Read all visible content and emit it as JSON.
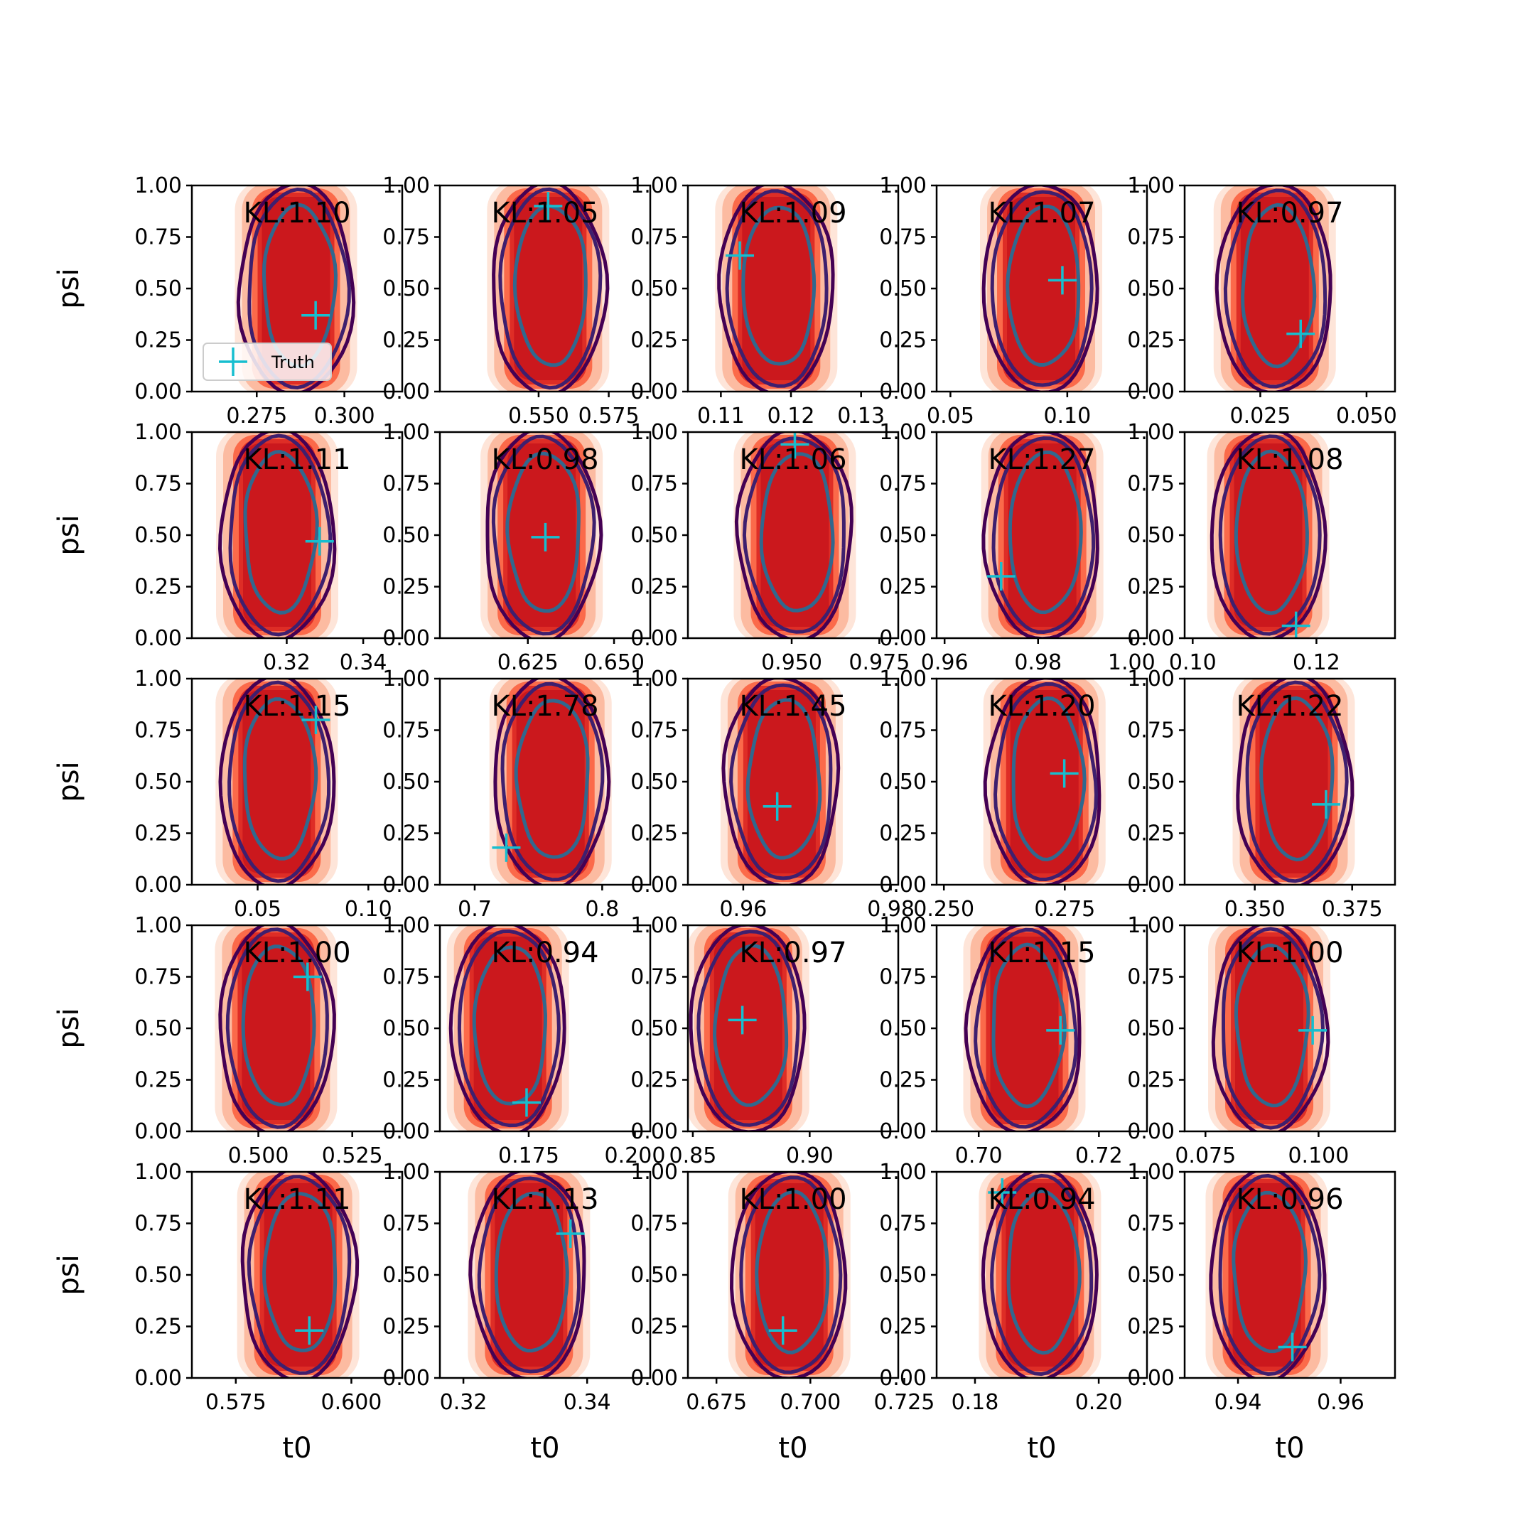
{
  "figure": {
    "legend_label": "Truth",
    "colors": {
      "fill_levels": [
        "#fee5d9",
        "#fcbba1",
        "#fb6a4a",
        "#de2d26",
        "#cb181d"
      ],
      "contour_outer": "#440154",
      "contour_middle": "#3e1f6e",
      "contour_inner": "#31688e",
      "truth_marker": "#17becf",
      "axis": "#000000"
    }
  },
  "chart_data": [
    {
      "type": "contour",
      "row": 0,
      "col": 0,
      "kl": "KL:1.10",
      "xticks": [
        0.275,
        0.3
      ],
      "xtick_labels": [
        "0.275",
        "0.300"
      ],
      "xlim": [
        0.2565,
        0.3165
      ],
      "center_x": 0.2862,
      "truth": [
        0.2918,
        0.37
      ],
      "ylim": [
        0,
        1
      ],
      "yticks": [
        "0.00",
        "0.25",
        "0.50",
        "0.75",
        "1.00"
      ],
      "ylabel": "psi",
      "xlabel": "",
      "legend": true
    },
    {
      "type": "contour",
      "row": 0,
      "col": 1,
      "kl": "KL:1.05",
      "xticks": [
        0.55,
        0.575
      ],
      "xtick_labels": [
        "0.550",
        "0.575"
      ],
      "xlim": [
        0.5148,
        0.5898
      ],
      "center_x": 0.5534,
      "truth": [
        0.5534,
        0.9
      ],
      "ylim": [
        0,
        1
      ],
      "yticks": [
        "0.00",
        "0.25",
        "0.50",
        "0.75",
        "1.00"
      ],
      "ylabel": "",
      "xlabel": ""
    },
    {
      "type": "contour",
      "row": 0,
      "col": 2,
      "kl": "KL:1.09",
      "xticks": [
        0.11,
        0.12,
        0.13
      ],
      "xtick_labels": [
        "0.11",
        "0.12",
        "0.13"
      ],
      "xlim": [
        0.1053,
        0.1353
      ],
      "center_x": 0.1179,
      "truth": [
        0.1127,
        0.66
      ],
      "ylim": [
        0,
        1
      ],
      "yticks": [
        "0.00",
        "0.25",
        "0.50",
        "0.75",
        "1.00"
      ],
      "ylabel": "",
      "xlabel": ""
    },
    {
      "type": "contour",
      "row": 0,
      "col": 3,
      "kl": "KL:1.07",
      "xticks": [
        0.05,
        0.1
      ],
      "xtick_labels": [
        "0.05",
        "0.10"
      ],
      "xlim": [
        0.0441,
        0.1341
      ],
      "center_x": 0.0888,
      "truth": [
        0.0979,
        0.54
      ],
      "ylim": [
        0,
        1
      ],
      "yticks": [
        "0.00",
        "0.25",
        "0.50",
        "0.75",
        "1.00"
      ],
      "ylabel": "",
      "xlabel": ""
    },
    {
      "type": "contour",
      "row": 0,
      "col": 4,
      "kl": "KL:0.97",
      "xticks": [
        0.025,
        0.05
      ],
      "xtick_labels": [
        "0.025",
        "0.050"
      ],
      "xlim": [
        0.0072,
        0.0567
      ],
      "center_x": 0.0284,
      "truth": [
        0.0345,
        0.28
      ],
      "ylim": [
        0,
        1
      ],
      "yticks": [
        "0.00",
        "0.25",
        "0.50",
        "0.75",
        "1.00"
      ],
      "ylabel": "",
      "xlabel": ""
    },
    {
      "type": "contour",
      "row": 1,
      "col": 0,
      "kl": "KL:1.11",
      "xticks": [
        0.32,
        0.34
      ],
      "xtick_labels": [
        "0.32",
        "0.34"
      ],
      "xlim": [
        0.2952,
        0.3502
      ],
      "center_x": 0.3175,
      "truth": [
        0.3286,
        0.47
      ],
      "ylim": [
        0,
        1
      ],
      "yticks": [
        "0.00",
        "0.25",
        "0.50",
        "0.75",
        "1.00"
      ],
      "ylabel": "psi",
      "xlabel": ""
    },
    {
      "type": "contour",
      "row": 1,
      "col": 1,
      "kl": "KL:0.98",
      "xticks": [
        0.625,
        0.65
      ],
      "xtick_labels": [
        "0.625",
        "0.650"
      ],
      "xlim": [
        0.5995,
        0.6605
      ],
      "center_x": 0.629,
      "truth": [
        0.6301,
        0.49
      ],
      "ylim": [
        0,
        1
      ],
      "yticks": [
        "0.00",
        "0.25",
        "0.50",
        "0.75",
        "1.00"
      ],
      "ylabel": "",
      "xlabel": ""
    },
    {
      "type": "contour",
      "row": 1,
      "col": 2,
      "kl": "KL:1.06",
      "xticks": [
        0.95,
        0.975
      ],
      "xtick_labels": [
        "0.950",
        "0.975"
      ],
      "xlim": [
        0.9204,
        0.9804
      ],
      "center_x": 0.9509,
      "truth": [
        0.9509,
        0.94
      ],
      "ylim": [
        0,
        1
      ],
      "yticks": [
        "0.00",
        "0.25",
        "0.50",
        "0.75",
        "1.00"
      ],
      "ylabel": "",
      "xlabel": ""
    },
    {
      "type": "contour",
      "row": 1,
      "col": 3,
      "kl": "KL:1.27",
      "xticks": [
        0.96,
        0.98,
        1.0
      ],
      "xtick_labels": [
        "0.96",
        "0.98",
        "1.00"
      ],
      "xlim": [
        0.9583,
        1.0033
      ],
      "center_x": 0.9809,
      "truth": [
        0.9721,
        0.3
      ],
      "ylim": [
        0,
        1
      ],
      "yticks": [
        "0.00",
        "0.25",
        "0.50",
        "0.75",
        "1.00"
      ],
      "ylabel": "",
      "xlabel": ""
    },
    {
      "type": "contour",
      "row": 1,
      "col": 4,
      "kl": "KL:1.08",
      "xticks": [
        0.1,
        0.12
      ],
      "xtick_labels": [
        "0.10",
        "0.12"
      ],
      "xlim": [
        0.0987,
        0.1327
      ],
      "center_x": 0.1122,
      "truth": [
        0.1167,
        0.06
      ],
      "ylim": [
        0,
        1
      ],
      "yticks": [
        "0.00",
        "0.25",
        "0.50",
        "0.75",
        "1.00"
      ],
      "ylabel": "",
      "xlabel": ""
    },
    {
      "type": "contour",
      "row": 2,
      "col": 0,
      "kl": "KL:1.15",
      "xticks": [
        0.05,
        0.1
      ],
      "xtick_labels": [
        "0.05",
        "0.10"
      ],
      "xlim": [
        0.0203,
        0.1153
      ],
      "center_x": 0.0586,
      "truth": [
        0.0763,
        0.8
      ],
      "ylim": [
        0,
        1
      ],
      "yticks": [
        "0.00",
        "0.25",
        "0.50",
        "0.75",
        "1.00"
      ],
      "ylabel": "psi",
      "xlabel": ""
    },
    {
      "type": "contour",
      "row": 2,
      "col": 1,
      "kl": "KL:1.78",
      "xticks": [
        0.7,
        0.8
      ],
      "xtick_labels": [
        "0.7",
        "0.8"
      ],
      "xlim": [
        0.6727,
        0.8377
      ],
      "center_x": 0.7595,
      "truth": [
        0.7248,
        0.18
      ],
      "ylim": [
        0,
        1
      ],
      "yticks": [
        "0.00",
        "0.25",
        "0.50",
        "0.75",
        "1.00"
      ],
      "ylabel": "",
      "xlabel": ""
    },
    {
      "type": "contour",
      "row": 2,
      "col": 2,
      "kl": "KL:1.45",
      "xticks": [
        0.96,
        0.98
      ],
      "xtick_labels": [
        "0.96",
        "0.98"
      ],
      "xlim": [
        0.9525,
        0.981
      ],
      "center_x": 0.9652,
      "truth": [
        0.9646,
        0.38
      ],
      "ylim": [
        0,
        1
      ],
      "yticks": [
        "0.00",
        "0.25",
        "0.50",
        "0.75",
        "1.00"
      ],
      "ylabel": "",
      "xlabel": ""
    },
    {
      "type": "contour",
      "row": 2,
      "col": 3,
      "kl": "KL:1.20",
      "xticks": [
        0.25,
        0.275
      ],
      "xtick_labels": [
        "0.250",
        "0.275"
      ],
      "xlim": [
        0.2485,
        0.292
      ],
      "center_x": 0.2708,
      "truth": [
        0.2749,
        0.54
      ],
      "ylim": [
        0,
        1
      ],
      "yticks": [
        "0.00",
        "0.25",
        "0.50",
        "0.75",
        "1.00"
      ],
      "ylabel": "",
      "xlabel": ""
    },
    {
      "type": "contour",
      "row": 2,
      "col": 4,
      "kl": "KL:1.22",
      "xticks": [
        0.35,
        0.375
      ],
      "xtick_labels": [
        "0.350",
        "0.375"
      ],
      "xlim": [
        0.332,
        0.386
      ],
      "center_x": 0.36,
      "truth": [
        0.3683,
        0.39
      ],
      "ylim": [
        0,
        1
      ],
      "yticks": [
        "0.00",
        "0.25",
        "0.50",
        "0.75",
        "1.00"
      ],
      "ylabel": "",
      "xlabel": ""
    },
    {
      "type": "contour",
      "row": 3,
      "col": 0,
      "kl": "KL:1.00",
      "xticks": [
        0.5,
        0.525
      ],
      "xtick_labels": [
        "0.500",
        "0.525"
      ],
      "xlim": [
        0.4823,
        0.5383
      ],
      "center_x": 0.5047,
      "truth": [
        0.5131,
        0.75
      ],
      "ylim": [
        0,
        1
      ],
      "yticks": [
        "0.00",
        "0.25",
        "0.50",
        "0.75",
        "1.00"
      ],
      "ylabel": "psi",
      "xlabel": ""
    },
    {
      "type": "contour",
      "row": 3,
      "col": 1,
      "kl": "KL:0.94",
      "xticks": [
        0.175,
        0.2
      ],
      "xtick_labels": [
        "0.175",
        "0.200"
      ],
      "xlim": [
        0.1541,
        0.2036
      ],
      "center_x": 0.1701,
      "truth": [
        0.1745,
        0.14
      ],
      "ylim": [
        0,
        1
      ],
      "yticks": [
        "0.00",
        "0.25",
        "0.50",
        "0.75",
        "1.00"
      ],
      "ylabel": "",
      "xlabel": ""
    },
    {
      "type": "contour",
      "row": 3,
      "col": 2,
      "kl": "KL:0.97",
      "xticks": [
        0.85,
        0.9
      ],
      "xtick_labels": [
        "0.85",
        "0.90"
      ],
      "xlim": [
        0.8479,
        0.9379
      ],
      "center_x": 0.8737,
      "truth": [
        0.8712,
        0.54
      ],
      "ylim": [
        0,
        1
      ],
      "yticks": [
        "0.00",
        "0.25",
        "0.50",
        "0.75",
        "1.00"
      ],
      "ylabel": "",
      "xlabel": ""
    },
    {
      "type": "contour",
      "row": 3,
      "col": 3,
      "kl": "KL:1.15",
      "xticks": [
        0.7,
        0.72
      ],
      "xtick_labels": [
        "0.70",
        "0.72"
      ],
      "xlim": [
        0.693,
        0.728
      ],
      "center_x": 0.7076,
      "truth": [
        0.7136,
        0.49
      ],
      "ylim": [
        0,
        1
      ],
      "yticks": [
        "0.00",
        "0.25",
        "0.50",
        "0.75",
        "1.00"
      ],
      "ylabel": "",
      "xlabel": ""
    },
    {
      "type": "contour",
      "row": 3,
      "col": 4,
      "kl": "KL:1.00",
      "xticks": [
        0.075,
        0.1
      ],
      "xtick_labels": [
        "0.075",
        "0.100"
      ],
      "xlim": [
        0.0704,
        0.1169
      ],
      "center_x": 0.0891,
      "truth": [
        0.0987,
        0.49
      ],
      "ylim": [
        0,
        1
      ],
      "yticks": [
        "0.00",
        "0.25",
        "0.50",
        "0.75",
        "1.00"
      ],
      "ylabel": "",
      "xlabel": ""
    },
    {
      "type": "contour",
      "row": 4,
      "col": 0,
      "kl": "KL:1.11",
      "xticks": [
        0.575,
        0.6
      ],
      "xtick_labels": [
        "0.575",
        "0.600"
      ],
      "xlim": [
        0.5655,
        0.611
      ],
      "center_x": 0.5885,
      "truth": [
        0.5909,
        0.23
      ],
      "ylim": [
        0,
        1
      ],
      "yticks": [
        "0.00",
        "0.25",
        "0.50",
        "0.75",
        "1.00"
      ],
      "ylabel": "psi",
      "xlabel": "t0"
    },
    {
      "type": "contour",
      "row": 4,
      "col": 1,
      "kl": "KL:1.13",
      "xticks": [
        0.32,
        0.34
      ],
      "xtick_labels": [
        "0.32",
        "0.34"
      ],
      "xlim": [
        0.3162,
        0.3502
      ],
      "center_x": 0.3306,
      "truth": [
        0.3373,
        0.7
      ],
      "ylim": [
        0,
        1
      ],
      "yticks": [
        "0.00",
        "0.25",
        "0.50",
        "0.75",
        "1.00"
      ],
      "ylabel": "",
      "xlabel": "t0"
    },
    {
      "type": "contour",
      "row": 4,
      "col": 2,
      "kl": "KL:1.00",
      "xticks": [
        0.675,
        0.7,
        0.725
      ],
      "xtick_labels": [
        "0.675",
        "0.700",
        "0.725"
      ],
      "xlim": [
        0.6674,
        0.7234
      ],
      "center_x": 0.6944,
      "truth": [
        0.6927,
        0.23
      ],
      "ylim": [
        0,
        1
      ],
      "yticks": [
        "0.00",
        "0.25",
        "0.50",
        "0.75",
        "1.00"
      ],
      "ylabel": "",
      "xlabel": "t0"
    },
    {
      "type": "contour",
      "row": 4,
      "col": 3,
      "kl": "KL:0.94",
      "xticks": [
        0.18,
        0.2
      ],
      "xtick_labels": [
        "0.18",
        "0.20"
      ],
      "xlim": [
        0.1738,
        0.2078
      ],
      "center_x": 0.1905,
      "truth": [
        0.1844,
        0.9
      ],
      "ylim": [
        0,
        1
      ],
      "yticks": [
        "0.00",
        "0.25",
        "0.50",
        "0.75",
        "1.00"
      ],
      "ylabel": "",
      "xlabel": "t0"
    },
    {
      "type": "contour",
      "row": 4,
      "col": 4,
      "kl": "KL:0.96",
      "xticks": [
        0.94,
        0.96
      ],
      "xtick_labels": [
        "0.94",
        "0.96"
      ],
      "xlim": [
        0.9296,
        0.9706
      ],
      "center_x": 0.9456,
      "truth": [
        0.9506,
        0.15
      ],
      "ylim": [
        0,
        1
      ],
      "yticks": [
        "0.00",
        "0.25",
        "0.50",
        "0.75",
        "1.00"
      ],
      "ylabel": "",
      "xlabel": "t0"
    }
  ]
}
